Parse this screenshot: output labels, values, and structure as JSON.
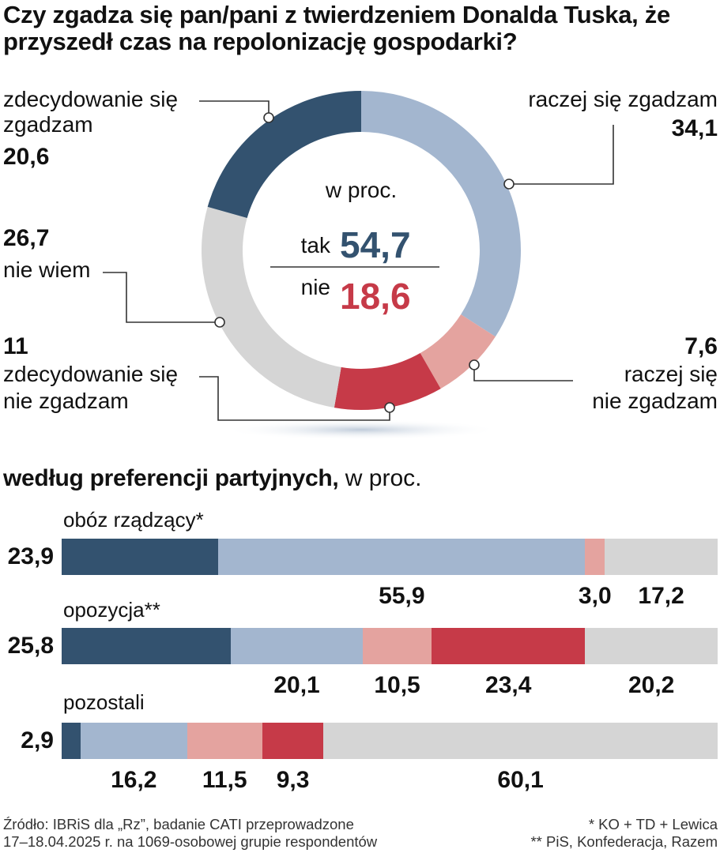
{
  "title": "Czy zgadza się pan/pani z twierdzeniem Donalda Tuska, że przyszedł czas na repolonizację gospodarki?",
  "colors": {
    "strongly_agree": "#33526f",
    "rather_agree": "#a3b6cf",
    "rather_disagree": "#e4a39f",
    "strongly_disagree": "#c63a48",
    "dont_know": "#d5d5d5"
  },
  "chart_data": [
    {
      "type": "pie",
      "unit_label": "w proc.",
      "slices": [
        {
          "label_line1": "raczej się zgadzam",
          "label_line2": "",
          "value": 34.1,
          "value_text": "34,1",
          "color_key": "rather_agree"
        },
        {
          "label_line1": "raczej się",
          "label_line2": "nie zgadzam",
          "value": 7.6,
          "value_text": "7,6",
          "color_key": "rather_disagree"
        },
        {
          "label_line1": "zdecydowanie się",
          "label_line2": "nie zgadzam",
          "value": 11,
          "value_text": "11",
          "color_key": "strongly_disagree"
        },
        {
          "label_line1": "nie wiem",
          "label_line2": "",
          "value": 26.7,
          "value_text": "26,7",
          "color_key": "dont_know"
        },
        {
          "label_line1": "zdecydowanie się",
          "label_line2": "zgadzam",
          "value": 20.6,
          "value_text": "20,6",
          "color_key": "strongly_agree"
        }
      ],
      "summary": {
        "yes_label": "tak",
        "yes_value": 54.7,
        "yes_text": "54,7",
        "no_label": "nie",
        "no_value": 18.6,
        "no_text": "18,6"
      }
    },
    {
      "type": "bar",
      "title_bold": "według preferencji partyjnych,",
      "title_rest": " w proc.",
      "stacked": true,
      "categories": [
        "obóz rządzący*",
        "opozycja**",
        "pozostali"
      ],
      "series": [
        {
          "name": "zdecydowanie się zgadzam",
          "color_key": "strongly_agree",
          "values": [
            23.9,
            25.8,
            2.9
          ],
          "texts": [
            "23,9",
            "25,8",
            "2,9"
          ]
        },
        {
          "name": "raczej się zgadzam",
          "color_key": "rather_agree",
          "values": [
            55.9,
            20.1,
            16.2
          ],
          "texts": [
            "55,9",
            "20,1",
            "16,2"
          ]
        },
        {
          "name": "raczej się nie zgadzam",
          "color_key": "rather_disagree",
          "values": [
            3.0,
            10.5,
            11.5
          ],
          "texts": [
            "3,0",
            "10,5",
            "11,5"
          ]
        },
        {
          "name": "zdecydowanie się nie zgadzam",
          "color_key": "strongly_disagree",
          "values": [
            0,
            23.4,
            9.3
          ],
          "texts": [
            "",
            "23,4",
            "9,3"
          ]
        },
        {
          "name": "nie wiem",
          "color_key": "dont_know",
          "values": [
            17.2,
            20.2,
            60.1
          ],
          "texts": [
            "17,2",
            "20,2",
            "60,1"
          ]
        }
      ]
    }
  ],
  "footer": {
    "source_line1": "Źródło: IBRiS dla „Rz”, badanie CATI przeprowadzone",
    "source_line2": "17–18.04.2025 r. na 1069-osobowej grupie respondentów",
    "note_line1": "* KO + TD + Lewica",
    "note_line2": "** PiS, Konfederacja, Razem"
  }
}
